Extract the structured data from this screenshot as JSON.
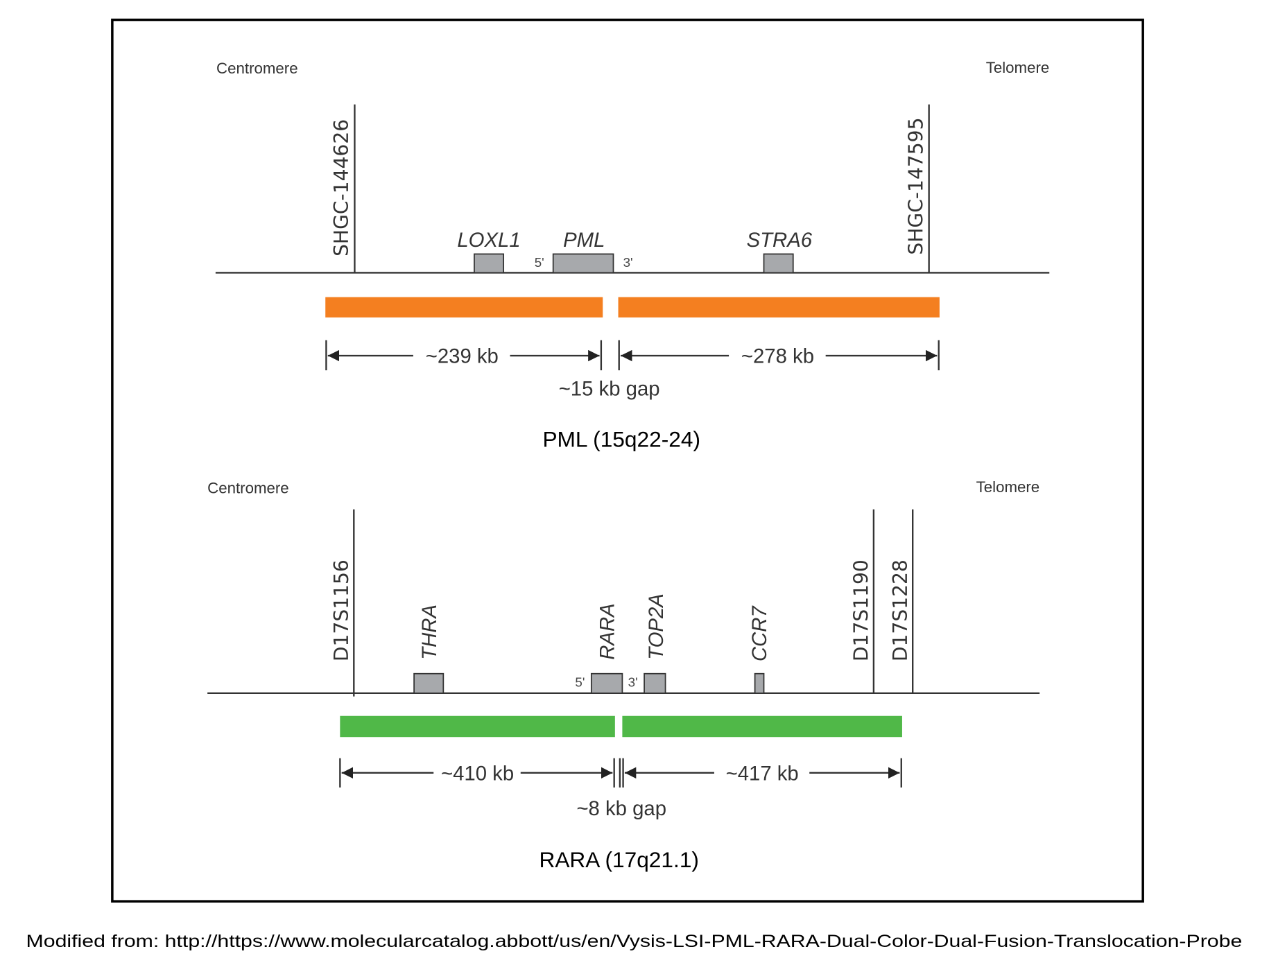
{
  "colors": {
    "pml_probe": "#f47f20",
    "rara_probe": "#50b848",
    "gene_box": "#a7a9ac",
    "frame": "#000000"
  },
  "pml": {
    "centromere": "Centromere",
    "telomere": "Telomere",
    "markers": [
      "SHGC-144626",
      "SHGC-147595"
    ],
    "genes": [
      "LOXL1",
      "PML",
      "STRA6"
    ],
    "five_prime": "5'",
    "three_prime": "3'",
    "left_size": "~239 kb",
    "right_size": "~278 kb",
    "gap": "~15 kb gap",
    "title": "PML (15q22-24)"
  },
  "rara": {
    "centromere": "Centromere",
    "telomere": "Telomere",
    "markers": [
      "D17S1156",
      "D17S1190",
      "D17S1228"
    ],
    "genes": [
      "THRA",
      "RARA",
      "TOP2A",
      "CCR7"
    ],
    "five_prime": "5'",
    "three_prime": "3'",
    "left_size": "~410 kb",
    "right_size": "~417 kb",
    "gap": "~8 kb gap",
    "title": "RARA (17q21.1)"
  },
  "footer": "Modified from: http://https://www.molecularcatalog.abbott/us/en/Vysis-LSI-PML-RARA-Dual-Color-Dual-Fusion-Translocation-Probe"
}
